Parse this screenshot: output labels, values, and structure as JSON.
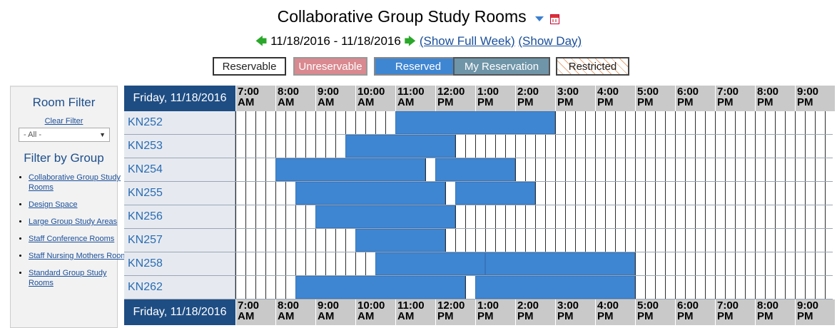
{
  "header": {
    "title": "Collaborative Group Study Rooms",
    "date_range": "11/18/2016 - 11/18/2016",
    "show_full_week": "(Show Full Week)",
    "show_day": "(Show Day)",
    "icons": [
      "dropdown-arrow-icon",
      "calendar-icon",
      "prev-arrow-icon",
      "next-arrow-icon"
    ]
  },
  "legend": {
    "reservable": "Reservable",
    "unreservable": "Unreservable",
    "reserved": "Reserved",
    "my_reservation": "My Reservation",
    "restricted": "Restricted"
  },
  "colors": {
    "reserved": "#3f86d2",
    "header_day": "#1e4d83",
    "unreservable": "#d9898f",
    "my_reservation": "#6f95a8"
  },
  "sidebar": {
    "room_filter_title": "Room Filter",
    "clear_filter": "Clear Filter",
    "select_value": "- All -",
    "filter_by_group_title": "Filter by Group",
    "groups": [
      "Collaborative Group Study Rooms",
      "Design Space",
      "Large Group Study Areas",
      "Staff Conference Rooms",
      "Staff Nursing Mothers Room",
      "Standard Group Study Rooms"
    ]
  },
  "schedule": {
    "day_label": "Friday, 11/18/2016",
    "hours": [
      "7:00 AM",
      "8:00 AM",
      "9:00 AM",
      "10:00 AM",
      "11:00 AM",
      "12:00 PM",
      "1:00 PM",
      "2:00 PM",
      "3:00 PM",
      "4:00 PM",
      "5:00 PM",
      "6:00 PM",
      "7:00 PM",
      "8:00 PM",
      "9:00 PM"
    ],
    "rooms": [
      {
        "name": "KN252",
        "reservations": [
          [
            "11:00",
            "3:00"
          ]
        ]
      },
      {
        "name": "KN253",
        "reservations": [
          [
            "9:45",
            "12:30"
          ]
        ]
      },
      {
        "name": "KN254",
        "reservations": [
          [
            "8:00",
            "11:45"
          ],
          [
            "12:00",
            "2:00"
          ]
        ]
      },
      {
        "name": "KN255",
        "reservations": [
          [
            "8:30",
            "12:15"
          ],
          [
            "12:30",
            "2:30"
          ]
        ]
      },
      {
        "name": "KN256",
        "reservations": [
          [
            "9:00",
            "12:30"
          ]
        ]
      },
      {
        "name": "KN257",
        "reservations": [
          [
            "10:00",
            "12:15"
          ]
        ]
      },
      {
        "name": "KN258",
        "reservations": [
          [
            "10:30",
            "1:15"
          ],
          [
            "1:15",
            "5:00"
          ]
        ]
      },
      {
        "name": "KN262",
        "reservations": [
          [
            "8:30",
            "12:45"
          ],
          [
            "1:00",
            "5:00"
          ]
        ]
      }
    ]
  }
}
